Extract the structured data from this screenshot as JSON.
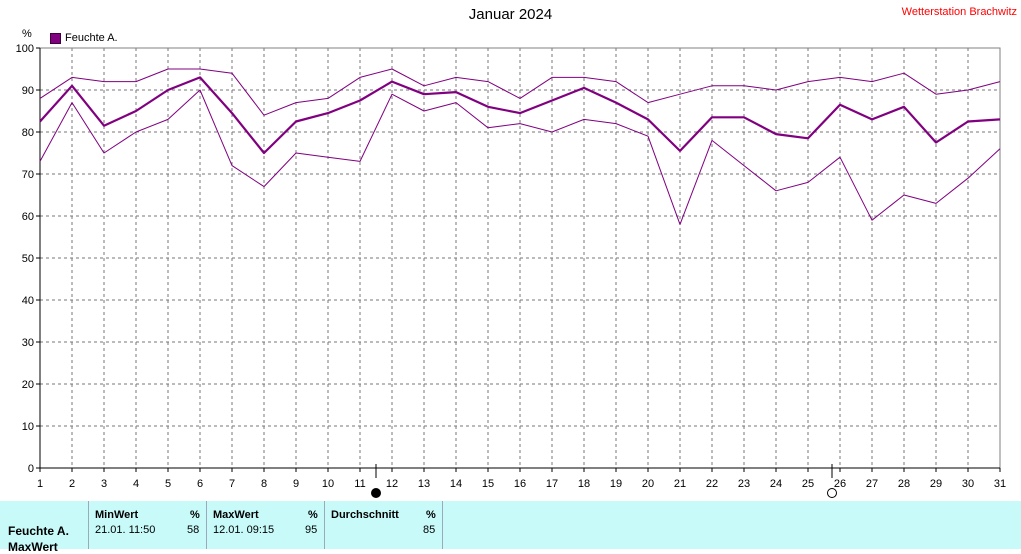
{
  "header": {
    "title": "Januar 2024",
    "station": "Wetterstation Brachwitz",
    "unit": "%"
  },
  "legend": {
    "label": "Feuchte A.",
    "color": "#800080"
  },
  "chart_data": {
    "type": "line",
    "title": "Januar 2024",
    "ylabel": "%",
    "xlim": [
      1,
      31
    ],
    "ylim": [
      0,
      100
    ],
    "yticks": [
      0,
      10,
      20,
      30,
      40,
      50,
      60,
      70,
      80,
      90,
      100
    ],
    "xticks": [
      1,
      2,
      3,
      4,
      5,
      6,
      7,
      8,
      9,
      10,
      11,
      12,
      13,
      14,
      15,
      16,
      17,
      18,
      19,
      20,
      21,
      22,
      23,
      24,
      25,
      26,
      27,
      28,
      29,
      30,
      31
    ],
    "grid": true,
    "legend_position": "top-left",
    "x": [
      1,
      2,
      3,
      4,
      5,
      6,
      7,
      8,
      9,
      10,
      11,
      12,
      13,
      14,
      15,
      16,
      17,
      18,
      19,
      20,
      21,
      22,
      23,
      24,
      25,
      26,
      27,
      28,
      29,
      30,
      31
    ],
    "series": [
      {
        "name": "Feuchte A.",
        "color": "#800080",
        "width": 2.2,
        "values": [
          82.5,
          91,
          81.5,
          85,
          90,
          93,
          84.5,
          75,
          82.5,
          84.5,
          87.5,
          92,
          89,
          89.5,
          86,
          84.5,
          87.5,
          90.5,
          87,
          83,
          75.5,
          83.5,
          83.5,
          79.5,
          78.5,
          86.5,
          83,
          86,
          77.5,
          82.5,
          83
        ]
      },
      {
        "color": "#800080",
        "width": 1,
        "values": [
          88,
          93,
          92,
          92,
          95,
          95,
          94,
          84,
          87,
          88,
          93,
          95,
          91,
          93,
          92,
          88,
          93,
          93,
          92,
          87,
          89,
          91,
          91,
          90,
          92,
          93,
          92,
          94,
          89,
          90,
          92
        ]
      },
      {
        "color": "#800080",
        "width": 1,
        "values": [
          73,
          87,
          75,
          80,
          83,
          90,
          72,
          67,
          75,
          74,
          73,
          89,
          85,
          87,
          81,
          82,
          80,
          83,
          82,
          79,
          58,
          78,
          72,
          66,
          68,
          74,
          59,
          65,
          63,
          69,
          76
        ]
      }
    ],
    "moon_markers": [
      {
        "day": 11.5,
        "phase": "new"
      },
      {
        "day": 25.75,
        "phase": "full"
      }
    ]
  },
  "stats": {
    "row_label": "Feuchte A.",
    "row_label2": "MaxWert",
    "min": {
      "header": "MinWert",
      "unit": "%",
      "datetime": "21.01.  11:50",
      "value": "58"
    },
    "max": {
      "header": "MaxWert",
      "unit": "%",
      "datetime": "12.01.  09:15",
      "value": "95"
    },
    "avg": {
      "header": "Durchschnitt",
      "unit": "%",
      "value": "85"
    }
  }
}
